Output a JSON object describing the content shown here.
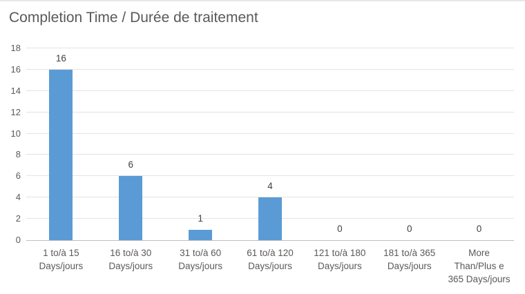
{
  "chart_data": {
    "type": "bar",
    "title": "Completion Time / Durée de traitement",
    "categories": [
      "1 to/à 15\nDays/jours",
      "16 to/à 30\nDays/jours",
      "31 to/à 60\nDays/jours",
      "61 to/à 120\nDays/jours",
      "121 to/à 180\nDays/jours",
      "181 to/à 365\nDays/jours",
      "More\nThan/Plus e\n365 Days/jours"
    ],
    "values": [
      16,
      6,
      1,
      4,
      0,
      0,
      0
    ],
    "value_labels": [
      "16",
      "6",
      "1",
      "4",
      "0",
      "0",
      "0"
    ],
    "xlabel": "",
    "ylabel": "",
    "ylim": [
      0,
      18
    ],
    "yticks": [
      0,
      2,
      4,
      6,
      8,
      10,
      12,
      14,
      16,
      18
    ],
    "grid": "horizontal",
    "legend": "none",
    "colors": {
      "bar": "#5b9bd5",
      "title_text": "#595959",
      "axis_text": "#595959",
      "value_label_text": "#404040",
      "gridline": "#e3e3e3",
      "axis_line": "#bfbfbf",
      "background": "#ffffff",
      "top_border": "#e7e7e7"
    }
  }
}
